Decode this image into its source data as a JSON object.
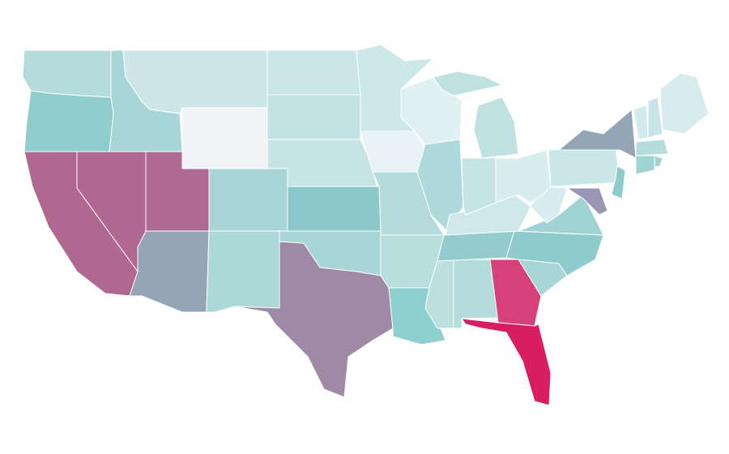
{
  "map": {
    "region_colors": [
      "#b5dcdc",
      "#8ecdcb",
      "#a8d6d6",
      "#cde7e8",
      "#f1f3f4",
      "#cae6e7",
      "#c2e2e3",
      "#c7e4e4",
      "#cde8ea",
      "#e7f3f4",
      "#e0f0f3",
      "#afd9da",
      "#b5dcdc",
      "#8cc8c9",
      "#a8d6d6",
      "#ae6a92",
      "#b06890",
      "#b06890",
      "#96a5b5",
      "#acd8d8",
      "#a8d6d6",
      "#9e8aa5",
      "#b8dede",
      "#8ecfcf",
      "#bce0e0",
      "#b4dcdc",
      "#d6417a",
      "#d91d61",
      "#a8d6d6",
      "#94cccd",
      "#8ecbcd",
      "#a0d4d4",
      "#cfe8e9",
      "#d8edee",
      "#c6e4e4",
      "#d8edee",
      "#bfe1e2",
      "#bfe1e2",
      "#cae6e7",
      "#93a6b5",
      "#8ecbcd",
      "#9a96b4",
      "#d1eaeb",
      "#c8e4e6",
      "#d7ecee",
      "#b5dcdc",
      "#a0d4d4",
      "#a0d4d4"
    ]
  }
}
